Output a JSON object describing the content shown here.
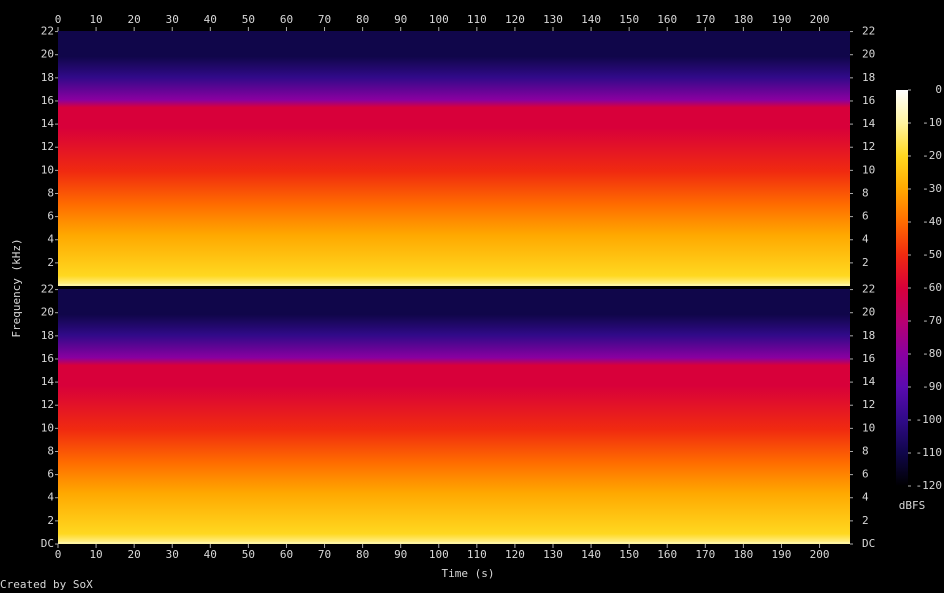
{
  "chart_data": {
    "type": "spectrogram",
    "xlabel": "Time (s)",
    "ylabel": "Frequency (kHz)",
    "xlim": [
      0,
      208
    ],
    "xticks": [
      0,
      10,
      20,
      30,
      40,
      50,
      60,
      70,
      80,
      90,
      100,
      110,
      120,
      130,
      140,
      150,
      160,
      170,
      180,
      190,
      200
    ],
    "channels": [
      {
        "ylim": [
          0,
          22.05
        ],
        "yticks": [
          2,
          4,
          6,
          8,
          10,
          12,
          14,
          16,
          18,
          20,
          22
        ]
      },
      {
        "ylim": [
          0,
          22.05
        ],
        "yticks": [
          {
            "value": 0,
            "label": "DC"
          },
          2,
          4,
          6,
          8,
          10,
          12,
          14,
          16,
          18,
          20,
          22
        ]
      }
    ],
    "colorbar": {
      "label": "dBFS",
      "lim": [
        0,
        -120
      ],
      "ticks": [
        0,
        -10,
        -20,
        -30,
        -40,
        -50,
        -60,
        -70,
        -80,
        -90,
        -100,
        -110,
        -120
      ],
      "colors": [
        "#ffffff",
        "#fff4a0",
        "#ffd820",
        "#ffa800",
        "#ff6c00",
        "#f02a10",
        "#d8003a",
        "#b80070",
        "#8a00a0",
        "#5a0ab0",
        "#300a88",
        "#10064a",
        "#000000"
      ]
    },
    "footer": "Created by SoX"
  }
}
